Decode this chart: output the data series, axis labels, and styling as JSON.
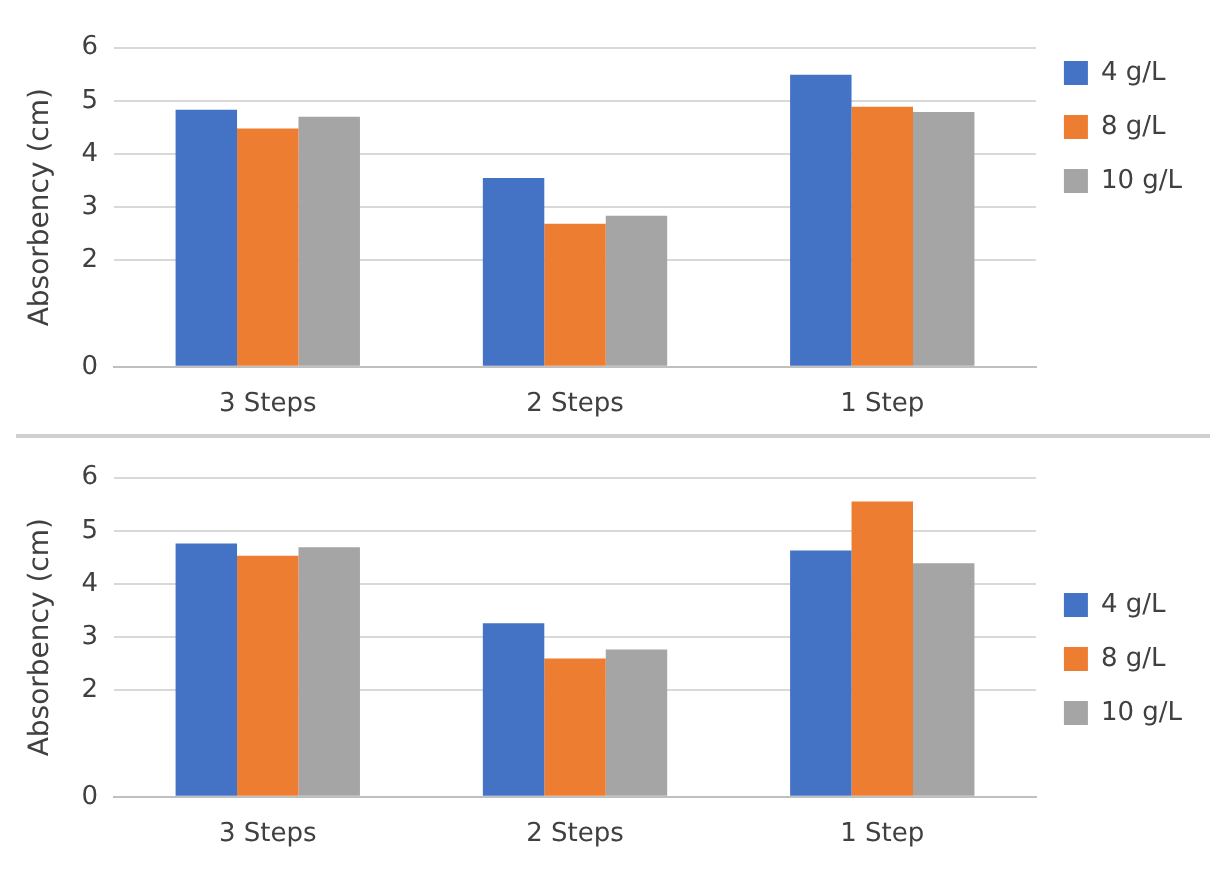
{
  "chart_data": [
    {
      "type": "bar",
      "ylabel": "Absorbency (cm)",
      "categories": [
        "3 Steps",
        "2 Steps",
        "1 Step"
      ],
      "ylim": [
        0,
        6
      ],
      "yticks": [
        0,
        2,
        3,
        4,
        5,
        6
      ],
      "grid": "y",
      "legend": "top right",
      "series": [
        {
          "name": "4 g/L",
          "color": "#4472c4",
          "values": [
            4.83,
            3.55,
            5.49
          ]
        },
        {
          "name": "8 g/L",
          "color": "#ed7d31",
          "values": [
            4.48,
            2.69,
            4.89
          ]
        },
        {
          "name": "10 g/L",
          "color": "#a5a5a5",
          "values": [
            4.7,
            2.84,
            4.79
          ]
        }
      ]
    },
    {
      "type": "bar",
      "ylabel": "Absorbency (cm)",
      "categories": [
        "3 Steps",
        "2 Steps",
        "1 Step"
      ],
      "ylim": [
        0,
        6
      ],
      "yticks": [
        0,
        2,
        3,
        4,
        5,
        6
      ],
      "grid": "y",
      "legend": "right",
      "series": [
        {
          "name": "4 g/L",
          "color": "#4472c4",
          "values": [
            4.76,
            3.26,
            4.63
          ]
        },
        {
          "name": "8 g/L",
          "color": "#ed7d31",
          "values": [
            4.53,
            2.6,
            5.55
          ]
        },
        {
          "name": "10 g/L",
          "color": "#a5a5a5",
          "values": [
            4.69,
            2.77,
            4.39
          ]
        }
      ]
    }
  ]
}
